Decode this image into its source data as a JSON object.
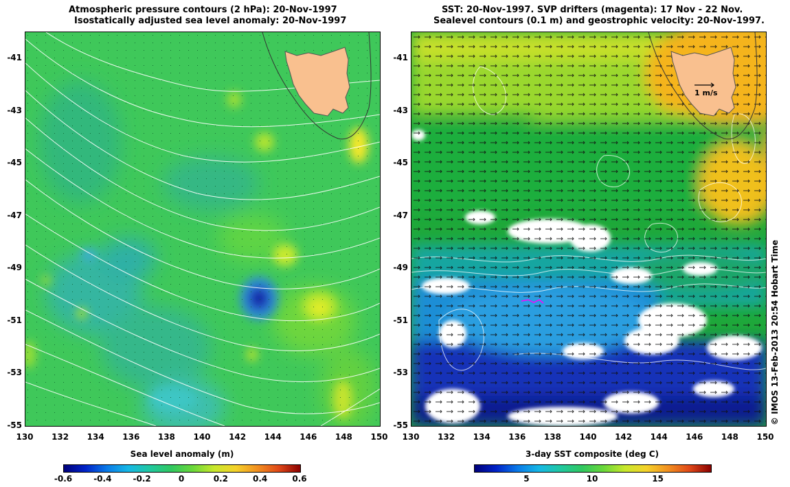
{
  "left_panel": {
    "title_line1": "Atmospheric pressure contours (2 hPa): 20-Nov-1997",
    "title_line2": "Isostatically adjusted sea level anomaly: 20-Nov-1997",
    "colorbar_label": "Sea level anomaly (m)",
    "colorbar_ticks": [
      "-0.6",
      "-0.4",
      "-0.2",
      "0",
      "0.2",
      "0.4",
      "0.6"
    ],
    "colorbar_range": [
      -0.6,
      0.6
    ]
  },
  "right_panel": {
    "title_line1": "SST: 20-Nov-1997. SVP drifters (magenta): 17 Nov - 22 Nov.",
    "title_line2": "Sealevel contours (0.1 m) and geostrophic velocity: 20-Nov-1997.",
    "velocity_scale_label": "1 m/s",
    "colorbar_label": "3-day SST composite (deg C)",
    "colorbar_ticks": [
      "5",
      "10",
      "15"
    ],
    "colorbar_range": [
      1,
      19
    ]
  },
  "axes": {
    "lon_ticks": [
      "130",
      "132",
      "134",
      "136",
      "138",
      "140",
      "142",
      "144",
      "146",
      "148",
      "150"
    ],
    "lat_ticks": [
      "-41",
      "-43",
      "-45",
      "-47",
      "-49",
      "-51",
      "-53",
      "-55"
    ],
    "lon_range": [
      130,
      150
    ],
    "lat_range": [
      -55,
      -40
    ]
  },
  "credit": "© IMOS 13-Feb-2013 20:54 Hobart Time",
  "colors": {
    "land": "#f9c08f",
    "cloud": "#ffffff",
    "contour": "#ffffff",
    "drifter": "#ff00ff"
  }
}
